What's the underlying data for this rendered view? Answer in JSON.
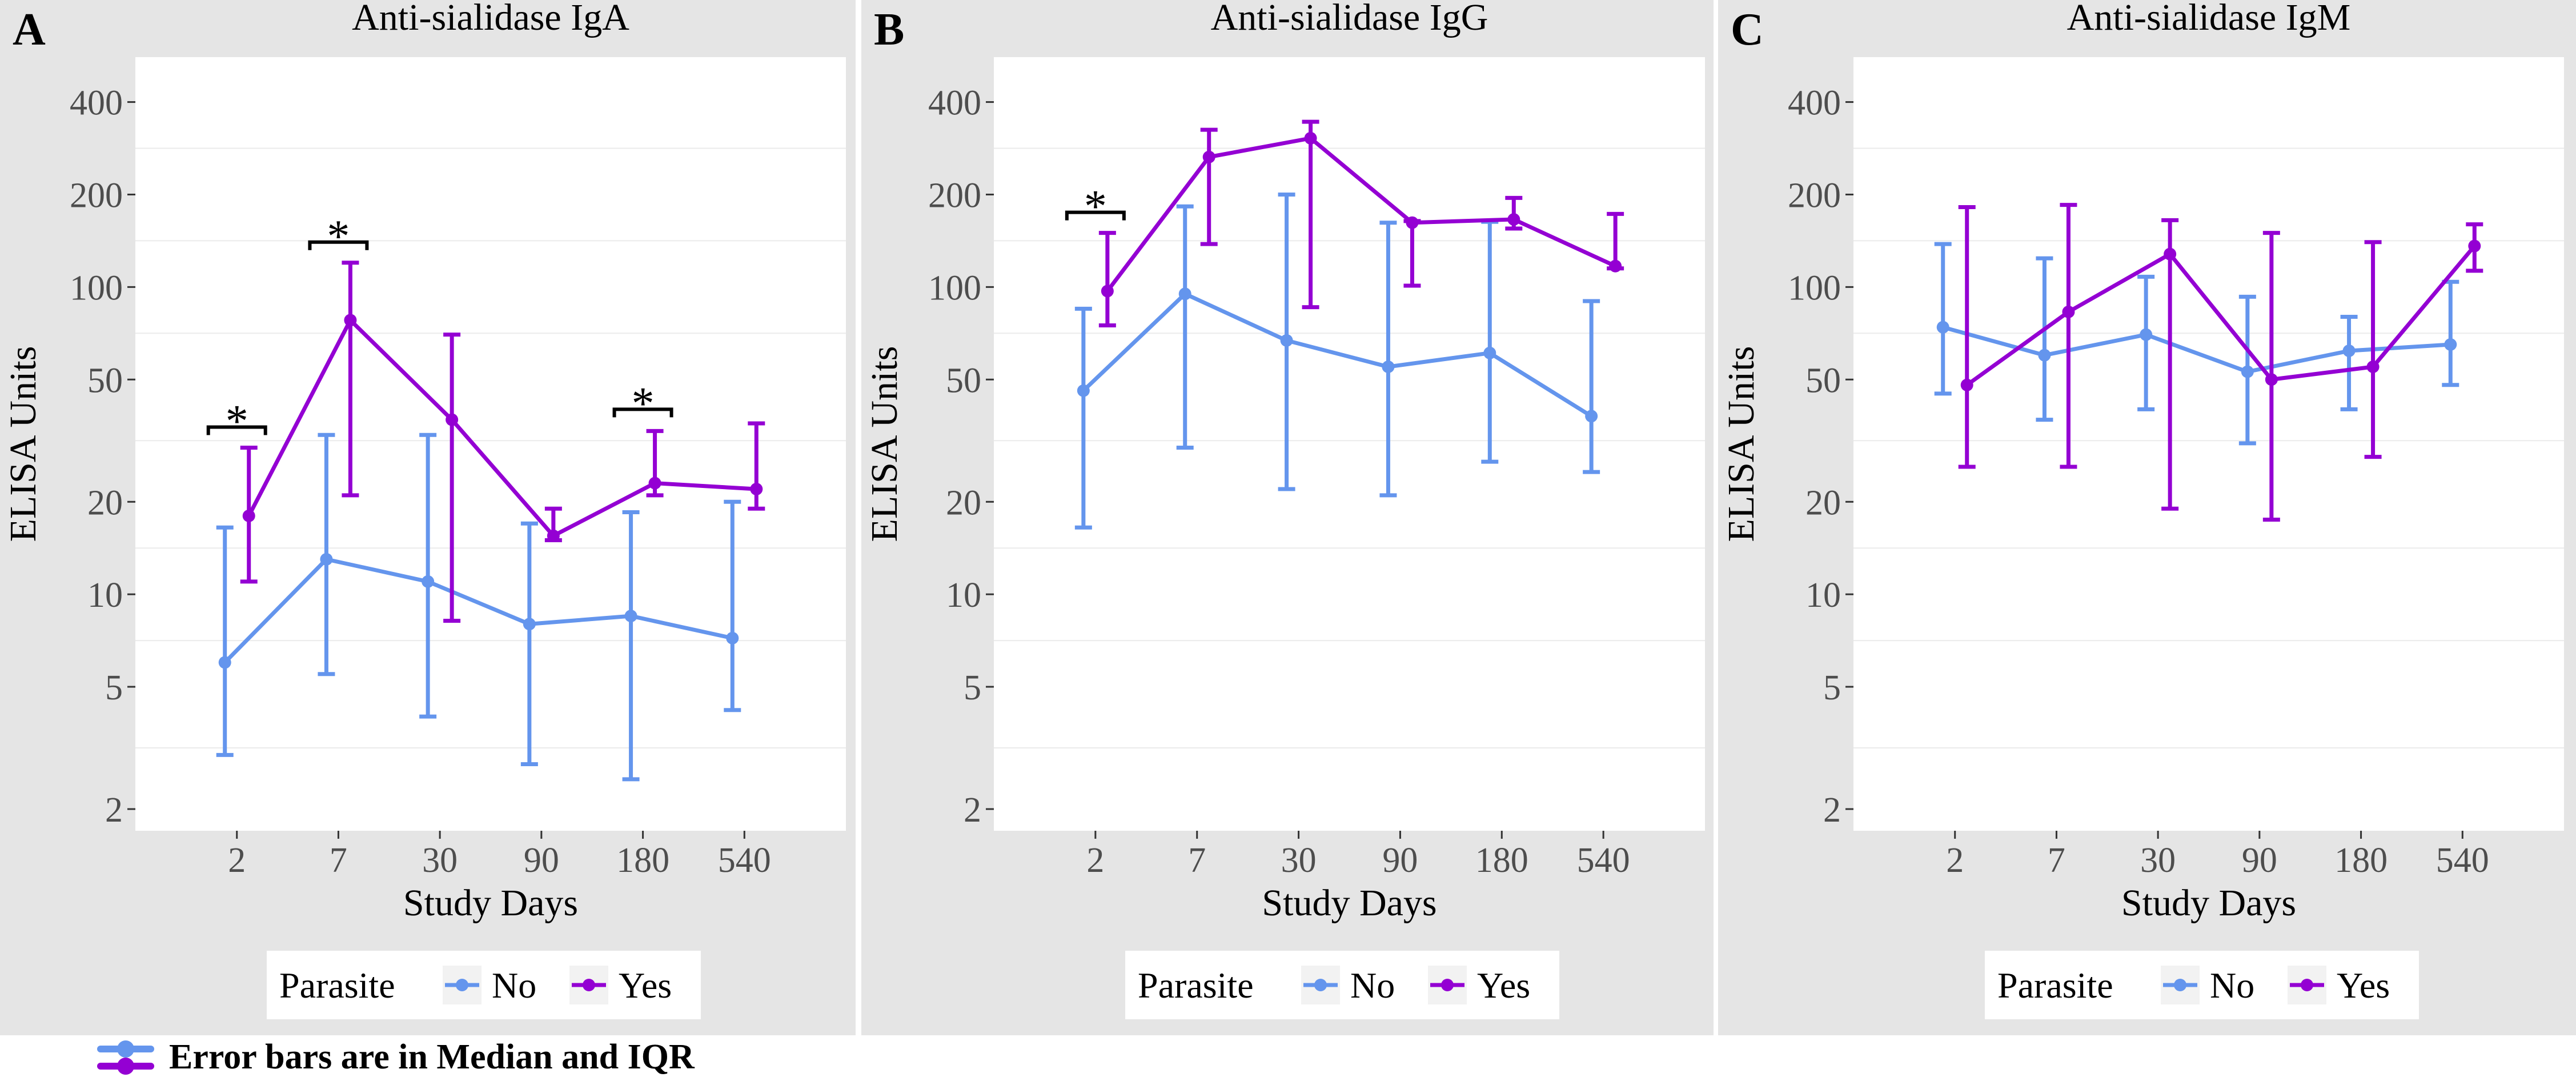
{
  "figure": {
    "colors": {
      "no": "#6495ED",
      "yes": "#9400D3",
      "panel_background": "#E5E5E5",
      "plot_background": "#FFFFFF",
      "text": "#000000",
      "axis_text": "#4D4D4D"
    },
    "footnote": "Error bars are in Median and IQR",
    "significance_symbol": "*"
  },
  "chart_data": [
    {
      "type": "line",
      "panel": "A",
      "title": "Anti-sialidase IgA",
      "xlabel": "Study Days",
      "ylabel": "ELISA Units",
      "y_scale": "log10",
      "ylim": [
        1.7,
        560
      ],
      "yticks": [
        2,
        5,
        10,
        20,
        50,
        100,
        200,
        400
      ],
      "categories": [
        "2",
        "7",
        "30",
        "90",
        "180",
        "540"
      ],
      "legend": {
        "title": "Parasite",
        "placement": "bottom",
        "entries": [
          "No",
          "Yes"
        ]
      },
      "series": [
        {
          "name": "No",
          "color": "#6495ED",
          "median": [
            6,
            13,
            11,
            8,
            8.5,
            7.2
          ],
          "q1": [
            3,
            5.5,
            4,
            2.8,
            2.5,
            4.2
          ],
          "q3": [
            16.5,
            33,
            33,
            17,
            18.5,
            20
          ]
        },
        {
          "name": "Yes",
          "color": "#9400D3",
          "median": [
            18,
            78,
            37,
            15.5,
            23,
            22
          ],
          "q1": [
            11,
            21,
            8.2,
            15,
            21,
            19
          ],
          "q3": [
            30,
            120,
            70,
            19,
            34,
            36
          ]
        }
      ],
      "significant": [
        {
          "category": "2",
          "bracket_y": 35
        },
        {
          "category": "7",
          "bracket_y": 140
        },
        {
          "category": "180",
          "bracket_y": 40
        }
      ]
    },
    {
      "type": "line",
      "panel": "B",
      "title": "Anti-sialidase IgG",
      "xlabel": "Study Days",
      "ylabel": "ELISA Units",
      "y_scale": "log10",
      "ylim": [
        1.7,
        560
      ],
      "yticks": [
        2,
        5,
        10,
        20,
        50,
        100,
        200,
        400
      ],
      "categories": [
        "2",
        "7",
        "30",
        "90",
        "180",
        "540"
      ],
      "legend": {
        "title": "Parasite",
        "placement": "bottom",
        "entries": [
          "No",
          "Yes"
        ]
      },
      "series": [
        {
          "name": "No",
          "color": "#6495ED",
          "median": [
            46,
            95,
            67,
            55,
            61,
            38
          ],
          "q1": [
            16.5,
            30,
            22,
            21,
            27,
            25
          ],
          "q3": [
            85,
            183,
            200,
            162,
            163,
            90
          ]
        },
        {
          "name": "Yes",
          "color": "#9400D3",
          "median": [
            97,
            265,
            305,
            162,
            166,
            117
          ],
          "q1": [
            75,
            138,
            86,
            101,
            155,
            115
          ],
          "q3": [
            150,
            325,
            345,
            164,
            195,
            173
          ]
        }
      ],
      "significant": [
        {
          "category": "2",
          "bracket_y": 175
        }
      ]
    },
    {
      "type": "line",
      "panel": "C",
      "title": "Anti-sialidase IgM",
      "xlabel": "Study Days",
      "ylabel": "ELISA Units",
      "y_scale": "log10",
      "ylim": [
        1.7,
        560
      ],
      "yticks": [
        2,
        5,
        10,
        20,
        50,
        100,
        200,
        400
      ],
      "categories": [
        "2",
        "7",
        "30",
        "90",
        "180",
        "540"
      ],
      "legend": {
        "title": "Parasite",
        "placement": "bottom",
        "entries": [
          "No",
          "Yes"
        ]
      },
      "series": [
        {
          "name": "No",
          "color": "#6495ED",
          "median": [
            74,
            60,
            70,
            53,
            62,
            65
          ],
          "q1": [
            45,
            37,
            40,
            31,
            40,
            48
          ],
          "q3": [
            138,
            124,
            108,
            93,
            80,
            104
          ]
        },
        {
          "name": "Yes",
          "color": "#9400D3",
          "median": [
            48,
            83,
            128,
            50,
            55,
            136
          ],
          "q1": [
            26,
            26,
            19,
            17.5,
            28,
            113
          ],
          "q3": [
            182,
            185,
            165,
            150,
            140,
            160
          ]
        }
      ],
      "significant": []
    }
  ]
}
